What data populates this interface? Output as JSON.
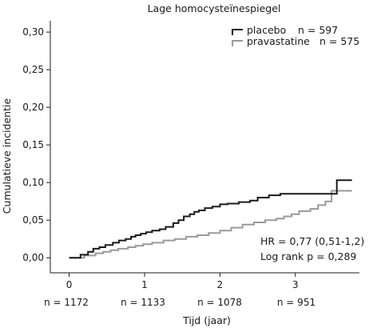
{
  "chart_data": {
    "type": "line",
    "title": "Lage homocysteïnespiegel",
    "xlabel": "Tijd (jaar)",
    "ylabel": "Cumulatieve incidentie",
    "xlim": [
      -0.25,
      3.85
    ],
    "ylim": [
      -0.02,
      0.315
    ],
    "x_ticks": [
      0,
      1,
      2,
      3
    ],
    "y_ticks": [
      0.0,
      0.05,
      0.1,
      0.15,
      0.2,
      0.25,
      0.3
    ],
    "y_tick_labels": [
      "0,00",
      "0,05",
      "0,10",
      "0,15",
      "0,20",
      "0,25",
      "0,30"
    ],
    "legend_position": "top-right",
    "series": [
      {
        "name": "placebo",
        "n_label": "n = 597",
        "color": "#1a1a1a",
        "x": [
          0,
          0.15,
          0.25,
          0.32,
          0.4,
          0.48,
          0.58,
          0.66,
          0.75,
          0.82,
          0.88,
          0.95,
          1.02,
          1.1,
          1.2,
          1.28,
          1.38,
          1.45,
          1.52,
          1.6,
          1.66,
          1.72,
          1.8,
          1.9,
          2.0,
          2.1,
          2.25,
          2.4,
          2.5,
          2.65,
          2.8,
          3.0,
          3.2,
          3.4,
          3.55,
          3.75
        ],
        "y": [
          0,
          0.004,
          0.008,
          0.012,
          0.014,
          0.017,
          0.02,
          0.023,
          0.025,
          0.028,
          0.03,
          0.032,
          0.034,
          0.036,
          0.038,
          0.041,
          0.046,
          0.05,
          0.055,
          0.058,
          0.061,
          0.063,
          0.066,
          0.068,
          0.071,
          0.072,
          0.074,
          0.076,
          0.08,
          0.083,
          0.085,
          0.085,
          0.085,
          0.085,
          0.103,
          0.103
        ]
      },
      {
        "name": "pravastatine",
        "n_label": "n = 575",
        "color": "#9a9a9a",
        "x": [
          0,
          0.2,
          0.35,
          0.45,
          0.55,
          0.65,
          0.78,
          0.88,
          0.98,
          1.1,
          1.25,
          1.4,
          1.55,
          1.7,
          1.85,
          2.0,
          2.15,
          2.3,
          2.45,
          2.6,
          2.75,
          2.85,
          2.95,
          3.05,
          3.2,
          3.3,
          3.4,
          3.48,
          3.75
        ],
        "y": [
          0,
          0.003,
          0.006,
          0.008,
          0.01,
          0.012,
          0.014,
          0.016,
          0.018,
          0.02,
          0.023,
          0.025,
          0.028,
          0.03,
          0.033,
          0.036,
          0.04,
          0.044,
          0.047,
          0.05,
          0.052,
          0.055,
          0.058,
          0.062,
          0.065,
          0.07,
          0.075,
          0.089,
          0.089
        ]
      }
    ],
    "annotations": [
      "HR = 0,77 (0,51-1,2)",
      "Log rank p = 0,289"
    ],
    "numbers_at_risk": [
      "n = 1172",
      "n = 1133",
      "n = 1078",
      "n = 951"
    ]
  }
}
